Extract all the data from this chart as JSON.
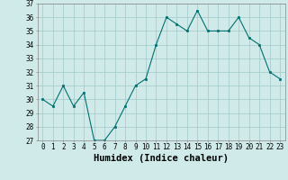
{
  "x": [
    0,
    1,
    2,
    3,
    4,
    5,
    6,
    7,
    8,
    9,
    10,
    11,
    12,
    13,
    14,
    15,
    16,
    17,
    18,
    19,
    20,
    21,
    22,
    23
  ],
  "y": [
    30,
    29.5,
    31,
    29.5,
    30.5,
    27,
    27,
    28,
    29.5,
    31,
    31.5,
    34,
    36,
    35.5,
    35,
    36.5,
    35,
    35,
    35,
    36,
    34.5,
    34,
    32,
    31.5
  ],
  "line_color": "#007070",
  "marker_color": "#007070",
  "bg_color": "#d0eaea",
  "grid_color": "#a0c8c8",
  "xlabel": "Humidex (Indice chaleur)",
  "xlim": [
    -0.5,
    23.5
  ],
  "ylim": [
    27,
    37
  ],
  "yticks": [
    27,
    28,
    29,
    30,
    31,
    32,
    33,
    34,
    35,
    36,
    37
  ],
  "xticks": [
    0,
    1,
    2,
    3,
    4,
    5,
    6,
    7,
    8,
    9,
    10,
    11,
    12,
    13,
    14,
    15,
    16,
    17,
    18,
    19,
    20,
    21,
    22,
    23
  ],
  "tick_fontsize": 5.5,
  "xlabel_fontsize": 7.5
}
